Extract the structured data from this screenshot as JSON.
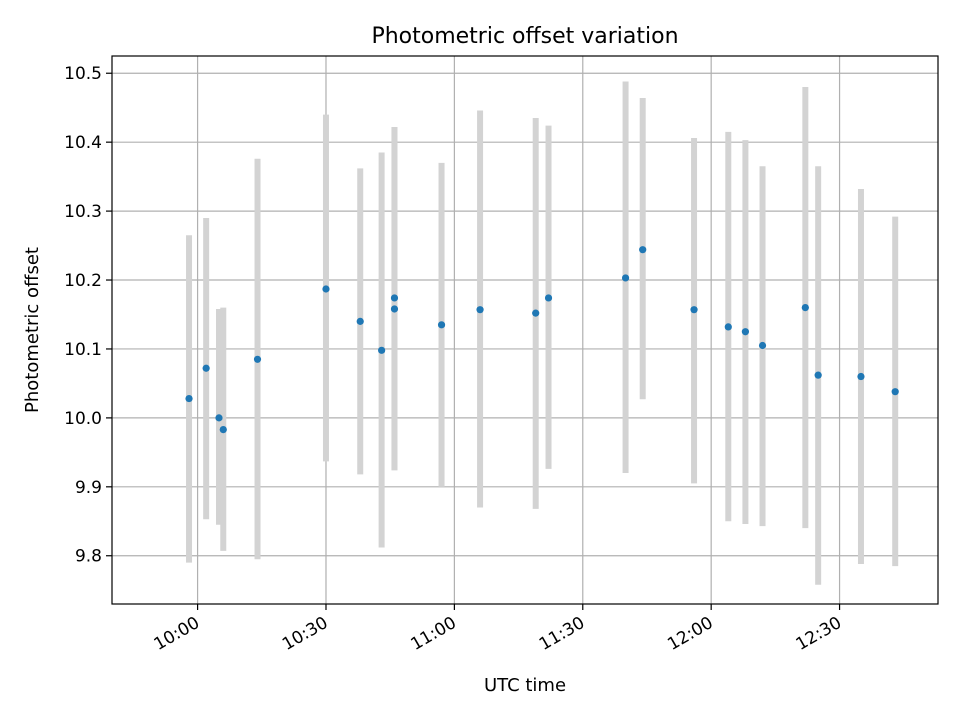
{
  "chart_data": {
    "type": "scatter",
    "title": "Photometric offset variation",
    "xlabel": "UTC time",
    "ylabel": "Photometric offset",
    "xlim": [
      "09:40",
      "12:53"
    ],
    "ylim": [
      9.73,
      10.525
    ],
    "grid": true,
    "x_ticks": [
      "10:00",
      "10:30",
      "11:00",
      "11:30",
      "12:00",
      "12:30"
    ],
    "y_ticks": [
      "9.8",
      "9.9",
      "10.0",
      "10.1",
      "10.2",
      "10.3",
      "10.4",
      "10.5"
    ],
    "colors": {
      "point": "#1f77b4",
      "errorbar": "#d3d3d3",
      "grid": "#b0b0b0",
      "axes": "#000000"
    },
    "points": [
      {
        "time": "09:58",
        "y": 10.028,
        "err_low": 9.79,
        "err_high": 10.265
      },
      {
        "time": "10:02",
        "y": 10.072,
        "err_low": 9.853,
        "err_high": 10.29
      },
      {
        "time": "10:05",
        "y": 10.0,
        "err_low": 9.845,
        "err_high": 10.158
      },
      {
        "time": "10:06",
        "y": 9.983,
        "err_low": 9.807,
        "err_high": 10.16
      },
      {
        "time": "10:14",
        "y": 10.085,
        "err_low": 9.795,
        "err_high": 10.376
      },
      {
        "time": "10:30",
        "y": 10.187,
        "err_low": 9.937,
        "err_high": 10.44
      },
      {
        "time": "10:38",
        "y": 10.14,
        "err_low": 9.918,
        "err_high": 10.362
      },
      {
        "time": "10:43",
        "y": 10.098,
        "err_low": 9.812,
        "err_high": 10.385
      },
      {
        "time": "10:46",
        "y": 10.158,
        "err_low": 9.924,
        "err_high": 10.422
      },
      {
        "time": "10:46",
        "y": 10.174,
        "err_low": 9.924,
        "err_high": 10.422
      },
      {
        "time": "10:57",
        "y": 10.135,
        "err_low": 9.9,
        "err_high": 10.37
      },
      {
        "time": "11:06",
        "y": 10.157,
        "err_low": 9.87,
        "err_high": 10.446
      },
      {
        "time": "11:19",
        "y": 10.152,
        "err_low": 9.868,
        "err_high": 10.435
      },
      {
        "time": "11:22",
        "y": 10.174,
        "err_low": 9.926,
        "err_high": 10.424
      },
      {
        "time": "11:40",
        "y": 10.203,
        "err_low": 9.92,
        "err_high": 10.488
      },
      {
        "time": "11:44",
        "y": 10.244,
        "err_low": 10.027,
        "err_high": 10.464
      },
      {
        "time": "11:56",
        "y": 10.157,
        "err_low": 9.905,
        "err_high": 10.406
      },
      {
        "time": "12:04",
        "y": 10.132,
        "err_low": 9.85,
        "err_high": 10.415
      },
      {
        "time": "12:08",
        "y": 10.125,
        "err_low": 9.846,
        "err_high": 10.403
      },
      {
        "time": "12:12",
        "y": 10.105,
        "err_low": 9.843,
        "err_high": 10.365
      },
      {
        "time": "12:22",
        "y": 10.16,
        "err_low": 9.84,
        "err_high": 10.48
      },
      {
        "time": "12:25",
        "y": 10.062,
        "err_low": 9.758,
        "err_high": 10.365
      },
      {
        "time": "12:35",
        "y": 10.06,
        "err_low": 9.788,
        "err_high": 10.332
      },
      {
        "time": "12:43",
        "y": 10.038,
        "err_low": 9.785,
        "err_high": 10.292
      }
    ]
  }
}
